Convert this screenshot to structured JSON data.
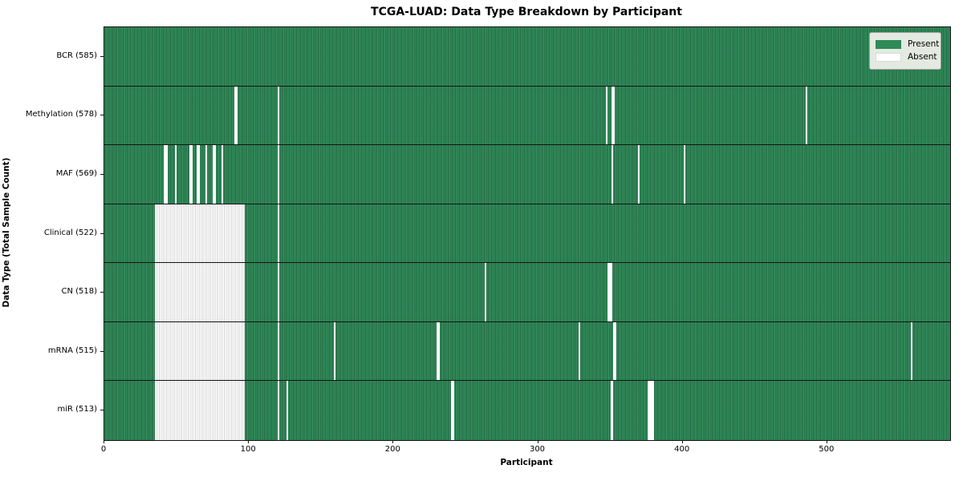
{
  "title": "TCGA-LUAD: Data Type Breakdown by Participant",
  "x_axis_label": "Participant",
  "y_axis_label": "Data Type (Total Sample Count)",
  "legend": {
    "present_label": "Present",
    "absent_label": "Absent"
  },
  "colors": {
    "present": "#2e8b57",
    "present_edge": "#1c5636",
    "absent": "#ffffff",
    "absent_edge": "#c2c2c2",
    "spine": "#151515",
    "legend_bg": "#e4e9e1"
  },
  "x_ticks": [
    0,
    100,
    200,
    300,
    400,
    500
  ],
  "chart_data": {
    "type": "heatmap",
    "title": "TCGA-LUAD: Data Type Breakdown by Participant",
    "xlabel": "Participant",
    "ylabel": "Data Type (Total Sample Count)",
    "legend": [
      "Present",
      "Absent"
    ],
    "legend_position": "upper right",
    "x_range": [
      0,
      585
    ],
    "total_participants": 585,
    "x_ticks": [
      0,
      100,
      200,
      300,
      400,
      500
    ],
    "rows": [
      {
        "name": "bcr",
        "label": "BCR (585)",
        "data_type": "BCR",
        "present_count": 585,
        "absent_ranges": [],
        "absent_participants": []
      },
      {
        "name": "methylation",
        "label": "Methylation (578)",
        "data_type": "Methylation",
        "present_count": 578,
        "absent_ranges": [],
        "absent_participants": [
          90,
          91,
          120,
          347,
          351,
          352,
          485
        ]
      },
      {
        "name": "maf",
        "label": "MAF (569)",
        "data_type": "MAF",
        "present_count": 569,
        "absent_ranges": [],
        "absent_participants": [
          41,
          42,
          43,
          49,
          59,
          60,
          64,
          65,
          70,
          75,
          76,
          81,
          120,
          351,
          369,
          401
        ]
      },
      {
        "name": "clinical",
        "label": "Clinical (522)",
        "data_type": "Clinical",
        "present_count": 522,
        "absent_ranges": [
          [
            35,
            96
          ]
        ],
        "absent_participants": [
          120
        ]
      },
      {
        "name": "cn",
        "label": "CN (518)",
        "data_type": "CN",
        "present_count": 518,
        "absent_ranges": [
          [
            35,
            96
          ]
        ],
        "absent_participants": [
          120,
          263,
          348,
          349,
          350
        ]
      },
      {
        "name": "mrna",
        "label": "mRNA (515)",
        "data_type": "mRNA",
        "present_count": 515,
        "absent_ranges": [
          [
            35,
            96
          ]
        ],
        "absent_participants": [
          120,
          159,
          230,
          231,
          328,
          352,
          353,
          558
        ]
      },
      {
        "name": "mir",
        "label": "miR (513)",
        "data_type": "miR",
        "present_count": 513,
        "absent_ranges": [
          [
            35,
            96
          ]
        ],
        "absent_participants": [
          120,
          126,
          240,
          241,
          350,
          351,
          376,
          377,
          378,
          379
        ]
      }
    ]
  }
}
